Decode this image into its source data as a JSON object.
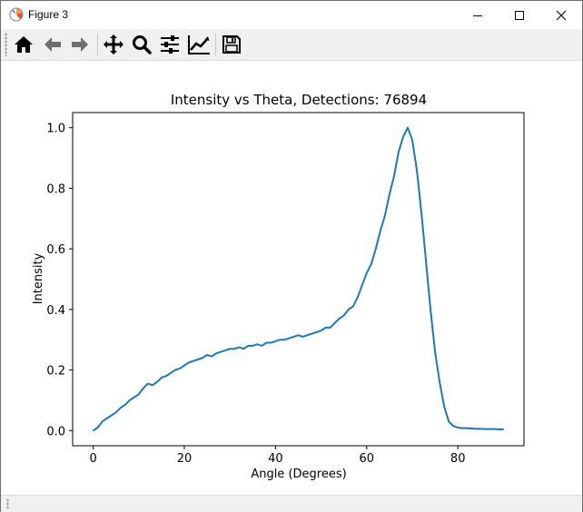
{
  "window": {
    "title": "Figure 3"
  },
  "toolbar": {
    "buttons": [
      "home-icon",
      "back-arrow-icon",
      "forward-arrow-icon",
      "pan-icon",
      "zoom-icon",
      "configure-subplots-icon",
      "edit-axis-icon",
      "save-icon"
    ]
  },
  "colors": {
    "line": "#1f77b4",
    "toolbar_bg": "#f0f0f0"
  },
  "chart_data": {
    "type": "line",
    "title": "Intensity vs Theta, Detections: 76894",
    "xlabel": "Angle (Degrees)",
    "ylabel": "Intensity",
    "xlim": [
      -4.5,
      94.5
    ],
    "ylim": [
      -0.05,
      1.05
    ],
    "xticks": [
      0,
      20,
      40,
      60,
      80
    ],
    "xtick_labels": [
      "0",
      "20",
      "40",
      "60",
      "80"
    ],
    "yticks": [
      0.0,
      0.2,
      0.4,
      0.6,
      0.8,
      1.0
    ],
    "ytick_labels": [
      "0.0",
      "0.2",
      "0.4",
      "0.6",
      "0.8",
      "1.0"
    ],
    "grid": false,
    "legend": "none",
    "series": [
      {
        "x": [
          0,
          1,
          2,
          3,
          4,
          5,
          6,
          7,
          8,
          9,
          10,
          11,
          12,
          13,
          14,
          15,
          16,
          17,
          18,
          19,
          20,
          21,
          22,
          23,
          24,
          25,
          26,
          27,
          28,
          29,
          30,
          31,
          32,
          33,
          34,
          35,
          36,
          37,
          38,
          39,
          40,
          41,
          42,
          43,
          44,
          45,
          46,
          47,
          48,
          49,
          50,
          51,
          52,
          53,
          54,
          55,
          56,
          57,
          58,
          59,
          60,
          61,
          62,
          63,
          64,
          65,
          66,
          67,
          68,
          69,
          70,
          71,
          72,
          73,
          74,
          75,
          76,
          77,
          78,
          79,
          80,
          81,
          82,
          83,
          84,
          85,
          86,
          87,
          88,
          89,
          90
        ],
        "y": [
          0.0,
          0.01,
          0.03,
          0.04,
          0.05,
          0.06,
          0.075,
          0.085,
          0.1,
          0.11,
          0.12,
          0.14,
          0.155,
          0.15,
          0.16,
          0.175,
          0.18,
          0.19,
          0.2,
          0.205,
          0.215,
          0.225,
          0.23,
          0.235,
          0.24,
          0.25,
          0.245,
          0.255,
          0.26,
          0.265,
          0.27,
          0.27,
          0.275,
          0.27,
          0.28,
          0.28,
          0.285,
          0.28,
          0.29,
          0.29,
          0.295,
          0.3,
          0.3,
          0.305,
          0.31,
          0.315,
          0.31,
          0.315,
          0.32,
          0.325,
          0.33,
          0.34,
          0.34,
          0.355,
          0.37,
          0.38,
          0.4,
          0.41,
          0.44,
          0.48,
          0.52,
          0.55,
          0.6,
          0.66,
          0.71,
          0.78,
          0.84,
          0.92,
          0.97,
          1.0,
          0.96,
          0.86,
          0.72,
          0.56,
          0.4,
          0.26,
          0.16,
          0.08,
          0.03,
          0.015,
          0.01,
          0.008,
          0.008,
          0.007,
          0.006,
          0.006,
          0.005,
          0.005,
          0.005,
          0.004,
          0.004
        ]
      }
    ]
  }
}
